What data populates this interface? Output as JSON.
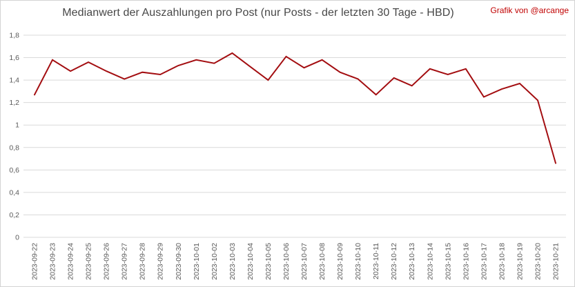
{
  "header": {
    "title": "Medianwert der Auszahlungen pro Post (nur Posts - der letzten 30 Tage - HBD)",
    "credit": "Grafik von @arcange"
  },
  "colors": {
    "line": "#A30D10",
    "credit_text": "#C00000",
    "title_text": "#474747",
    "gridline": "#D9D9D9",
    "axis_label": "#595959",
    "background": "#FFFFFF",
    "border": "#D3D3D3"
  },
  "chart_data": {
    "type": "line",
    "title": "Medianwert der Auszahlungen pro Post (nur Posts - der letzten 30 Tage - HBD)",
    "xlabel": "",
    "ylabel": "",
    "x": [
      "2023-09-22",
      "2023-09-23",
      "2023-09-24",
      "2023-09-25",
      "2023-09-26",
      "2023-09-27",
      "2023-09-28",
      "2023-09-29",
      "2023-09-30",
      "2023-10-01",
      "2023-10-02",
      "2023-10-03",
      "2023-10-04",
      "2023-10-05",
      "2023-10-06",
      "2023-10-07",
      "2023-10-08",
      "2023-10-09",
      "2023-10-10",
      "2023-10-11",
      "2023-10-12",
      "2023-10-13",
      "2023-10-14",
      "2023-10-15",
      "2023-10-16",
      "2023-10-17",
      "2023-10-18",
      "2023-10-19",
      "2023-10-20",
      "2023-10-21"
    ],
    "values": [
      1.27,
      1.58,
      1.48,
      1.56,
      1.48,
      1.41,
      1.47,
      1.45,
      1.53,
      1.58,
      1.55,
      1.64,
      1.52,
      1.4,
      1.61,
      1.51,
      1.58,
      1.47,
      1.41,
      1.27,
      1.42,
      1.35,
      1.5,
      1.45,
      1.5,
      1.25,
      1.32,
      1.37,
      1.22,
      0.66
    ],
    "ylim": [
      0,
      1.8
    ],
    "y_tick_values": [
      0,
      0.2,
      0.4,
      0.6,
      0.8,
      1.0,
      1.2,
      1.4,
      1.6,
      1.8
    ],
    "y_tick_labels": [
      "0",
      "0,2",
      "0,4",
      "0,6",
      "0,8",
      "1",
      "1,2",
      "1,4",
      "1,6",
      "1,8"
    ],
    "grid": true,
    "legend": false,
    "x_tick_rotation_deg": -90
  }
}
